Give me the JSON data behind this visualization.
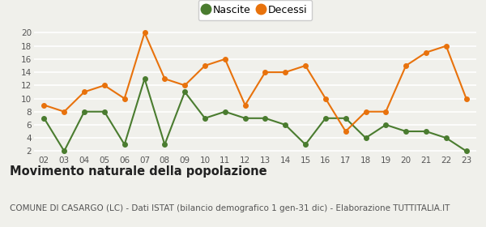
{
  "years": [
    "02",
    "03",
    "04",
    "05",
    "06",
    "07",
    "08",
    "09",
    "10",
    "11",
    "12",
    "13",
    "14",
    "15",
    "16",
    "17",
    "18",
    "19",
    "20",
    "21",
    "22",
    "23"
  ],
  "nascite": [
    7,
    2,
    8,
    8,
    3,
    13,
    3,
    11,
    7,
    8,
    7,
    7,
    6,
    3,
    7,
    7,
    4,
    6,
    5,
    5,
    4,
    2
  ],
  "decessi": [
    9,
    8,
    11,
    12,
    10,
    20,
    13,
    12,
    15,
    16,
    9,
    14,
    14,
    15,
    10,
    5,
    8,
    8,
    15,
    17,
    18,
    10
  ],
  "nascite_color": "#4a7c2f",
  "decessi_color": "#e8720c",
  "background_color": "#f0f0eb",
  "grid_color": "#ffffff",
  "yticks": [
    2,
    4,
    6,
    8,
    10,
    12,
    14,
    16,
    18,
    20
  ],
  "title": "Movimento naturale della popolazione",
  "subtitle": "COMUNE DI CASARGO (LC) - Dati ISTAT (bilancio demografico 1 gen-31 dic) - Elaborazione TUTTITALIA.IT",
  "legend_nascite": "Nascite",
  "legend_decessi": "Decessi",
  "title_fontsize": 10.5,
  "subtitle_fontsize": 7.5,
  "marker_size": 4,
  "line_width": 1.5
}
